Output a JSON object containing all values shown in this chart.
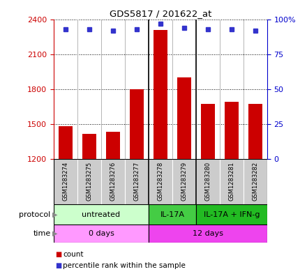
{
  "title": "GDS5817 / 201622_at",
  "samples": [
    "GSM1283274",
    "GSM1283275",
    "GSM1283276",
    "GSM1283277",
    "GSM1283278",
    "GSM1283279",
    "GSM1283280",
    "GSM1283281",
    "GSM1283282"
  ],
  "counts": [
    1480,
    1415,
    1435,
    1800,
    2310,
    1900,
    1670,
    1690,
    1670
  ],
  "percentile_ranks": [
    93,
    93,
    92,
    93,
    97,
    94,
    93,
    93,
    92
  ],
  "ymin": 1200,
  "ymax": 2400,
  "yticks": [
    1200,
    1500,
    1800,
    2100,
    2400
  ],
  "ytick_labels": [
    "1200",
    "1500",
    "1800",
    "2100",
    "2400"
  ],
  "right_yticks": [
    0,
    25,
    50,
    75,
    100
  ],
  "right_ytick_labels": [
    "0",
    "25",
    "50",
    "75",
    "100%"
  ],
  "bar_color": "#cc0000",
  "dot_color": "#3333cc",
  "protocol_groups": [
    {
      "label": "untreated",
      "start": 0,
      "end": 4,
      "color": "#ccffcc"
    },
    {
      "label": "IL-17A",
      "start": 4,
      "end": 6,
      "color": "#44cc44"
    },
    {
      "label": "IL-17A + IFN-g",
      "start": 6,
      "end": 9,
      "color": "#22bb22"
    }
  ],
  "time_groups": [
    {
      "label": "0 days",
      "start": 0,
      "end": 4,
      "color": "#ff99ff"
    },
    {
      "label": "12 days",
      "start": 4,
      "end": 9,
      "color": "#ee44ee"
    }
  ],
  "legend_count_color": "#cc0000",
  "legend_dot_color": "#3333cc",
  "bg_color": "#ffffff",
  "grid_color": "#000000",
  "left_axis_color": "#cc0000",
  "right_axis_color": "#0000cc",
  "sample_cell_color": "#cccccc",
  "protocol_label_color": "#888888",
  "time_label_color": "#888888"
}
